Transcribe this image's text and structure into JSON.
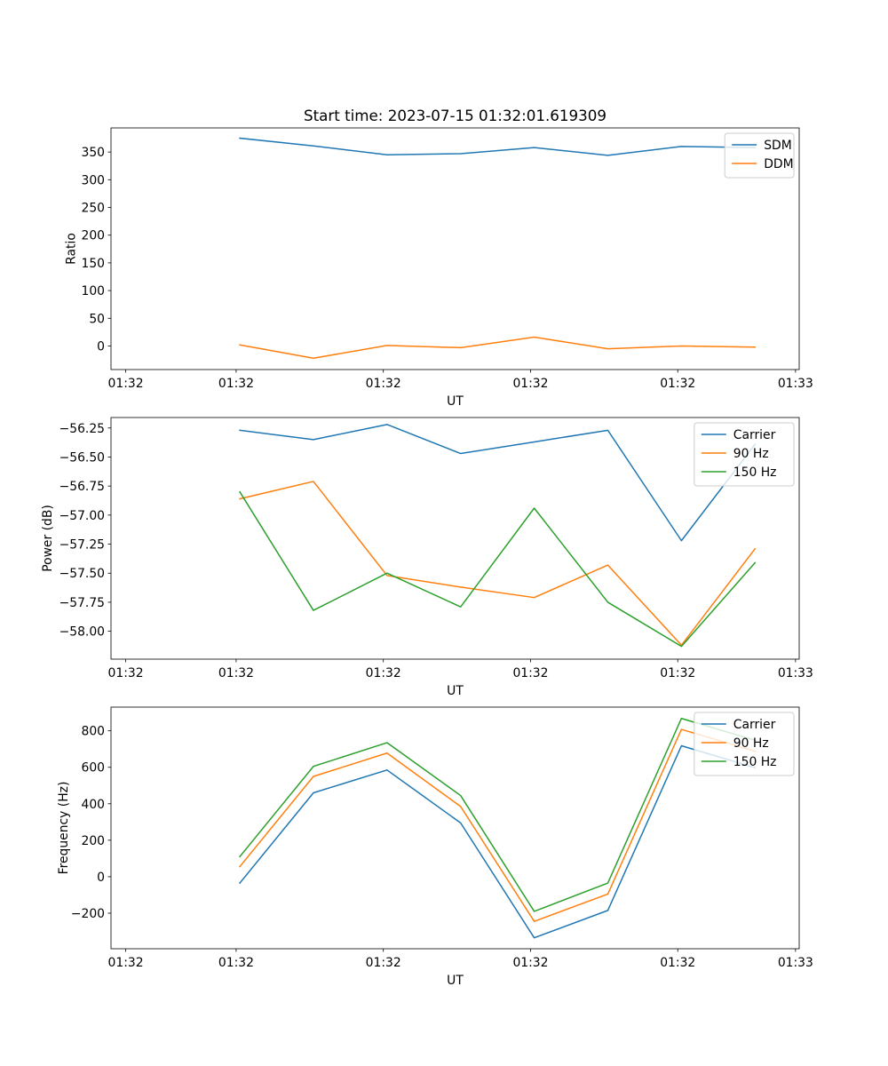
{
  "figure_title": "Start time: 2023-07-15 01:32:01.619309",
  "colors": {
    "blue": "#1f77b4",
    "orange": "#ff7f0e",
    "green": "#2ca02c"
  },
  "chart_data": [
    {
      "type": "line",
      "title": "Start time: 2023-07-15 01:32:01.619309",
      "xlabel": "UT",
      "ylabel": "Ratio",
      "x": [
        1.0,
        2.0,
        3.0,
        4.0,
        5.0,
        6.0,
        7.0,
        8.0
      ],
      "xlim": [
        -0.75,
        8.6
      ],
      "xticks": [
        {
          "value": -0.55,
          "label": "01:32"
        },
        {
          "value": 0.95,
          "label": "01:32"
        },
        {
          "value": 2.95,
          "label": "01:32"
        },
        {
          "value": 4.95,
          "label": "01:32"
        },
        {
          "value": 6.95,
          "label": "01:32"
        },
        {
          "value": 8.55,
          "label": "01:33"
        }
      ],
      "ylim": [
        -42.5,
        393.5
      ],
      "yticks": [
        0,
        50,
        100,
        150,
        200,
        250,
        300,
        350
      ],
      "legend_loc": "upper right",
      "series": [
        {
          "name": "SDM",
          "color": "#1f77b4",
          "values": [
            375,
            361,
            345,
            347,
            358,
            344,
            360,
            358
          ]
        },
        {
          "name": "DDM",
          "color": "#ff7f0e",
          "values": [
            2,
            -22,
            1,
            -3,
            16,
            -5,
            0,
            -2
          ]
        }
      ]
    },
    {
      "type": "line",
      "title": "",
      "xlabel": "UT",
      "ylabel": "Power (dB)",
      "x": [
        1.0,
        2.0,
        3.0,
        4.0,
        5.0,
        6.0,
        7.0,
        8.0
      ],
      "xlim": [
        -0.75,
        8.6
      ],
      "xticks": [
        {
          "value": -0.55,
          "label": "01:32"
        },
        {
          "value": 0.95,
          "label": "01:32"
        },
        {
          "value": 2.95,
          "label": "01:32"
        },
        {
          "value": 4.95,
          "label": "01:32"
        },
        {
          "value": 6.95,
          "label": "01:32"
        },
        {
          "value": 8.55,
          "label": "01:33"
        }
      ],
      "ylim": [
        -58.24,
        -56.16
      ],
      "yticks": [
        -58.0,
        -57.75,
        -57.5,
        -57.25,
        -57.0,
        -56.75,
        -56.5,
        -56.25
      ],
      "ytick_labels": [
        "−58.00",
        "−57.75",
        "−57.50",
        "−57.25",
        "−57.00",
        "−56.75",
        "−56.50",
        "−56.25"
      ],
      "legend_loc": "upper right",
      "series": [
        {
          "name": "Carrier",
          "color": "#1f77b4",
          "values": [
            -56.27,
            -56.35,
            -56.22,
            -56.47,
            -56.37,
            -56.27,
            -57.22,
            -56.39
          ]
        },
        {
          "name": "90 Hz",
          "color": "#ff7f0e",
          "values": [
            -56.86,
            -56.71,
            -57.52,
            -57.62,
            -57.71,
            -57.43,
            -58.12,
            -57.29
          ]
        },
        {
          "name": "150 Hz",
          "color": "#2ca02c",
          "values": [
            -56.8,
            -57.82,
            -57.5,
            -57.79,
            -56.94,
            -57.75,
            -58.13,
            -57.41
          ]
        }
      ]
    },
    {
      "type": "line",
      "title": "",
      "xlabel": "UT",
      "ylabel": "Frequency (Hz)",
      "x": [
        1.0,
        2.0,
        3.0,
        4.0,
        5.0,
        6.0,
        7.0,
        8.0
      ],
      "xlim": [
        -0.75,
        8.6
      ],
      "xticks": [
        {
          "value": -0.55,
          "label": "01:32"
        },
        {
          "value": 0.95,
          "label": "01:32"
        },
        {
          "value": 2.95,
          "label": "01:32"
        },
        {
          "value": 4.95,
          "label": "01:32"
        },
        {
          "value": 6.95,
          "label": "01:32"
        },
        {
          "value": 8.55,
          "label": "01:33"
        }
      ],
      "ylim": [
        -395,
        930
      ],
      "yticks": [
        -200,
        0,
        200,
        400,
        600,
        800
      ],
      "ytick_labels": [
        "−200",
        "0",
        "200",
        "400",
        "600",
        "800"
      ],
      "legend_loc": "upper right",
      "series": [
        {
          "name": "Carrier",
          "color": "#1f77b4",
          "values": [
            -35,
            460,
            585,
            295,
            -335,
            -185,
            718,
            598
          ]
        },
        {
          "name": "90 Hz",
          "color": "#ff7f0e",
          "values": [
            55,
            550,
            678,
            385,
            -245,
            -95,
            808,
            688
          ]
        },
        {
          "name": "150 Hz",
          "color": "#2ca02c",
          "values": [
            110,
            605,
            735,
            445,
            -190,
            -35,
            868,
            748
          ]
        }
      ]
    }
  ]
}
